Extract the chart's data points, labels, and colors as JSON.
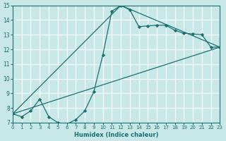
{
  "xlabel": "Humidex (Indice chaleur)",
  "bg_color": "#c8e8e8",
  "grid_color": "#ffffff",
  "line_color": "#1a7070",
  "xlim": [
    0,
    23
  ],
  "ylim": [
    7,
    15
  ],
  "xticks": [
    0,
    1,
    2,
    3,
    4,
    5,
    6,
    7,
    8,
    9,
    10,
    11,
    12,
    13,
    14,
    15,
    16,
    17,
    18,
    19,
    20,
    21,
    22,
    23
  ],
  "yticks": [
    7,
    8,
    9,
    10,
    11,
    12,
    13,
    14,
    15
  ],
  "curve1_x": [
    0,
    1,
    2,
    3,
    4,
    5,
    6,
    7,
    8,
    9,
    10,
    11,
    12,
    13,
    14,
    15,
    16,
    17,
    18,
    19,
    20,
    21,
    22,
    23
  ],
  "curve1_y": [
    7.6,
    7.4,
    7.8,
    8.6,
    7.4,
    7.0,
    6.9,
    7.2,
    7.8,
    9.1,
    11.6,
    14.6,
    15.0,
    14.7,
    13.55,
    13.6,
    13.65,
    13.65,
    13.3,
    13.1,
    13.05,
    13.0,
    12.15,
    12.15
  ],
  "line1_x": [
    0,
    23
  ],
  "line1_y": [
    7.6,
    12.15
  ],
  "line2_x": [
    0,
    12,
    23
  ],
  "line2_y": [
    7.6,
    15.0,
    12.15
  ]
}
